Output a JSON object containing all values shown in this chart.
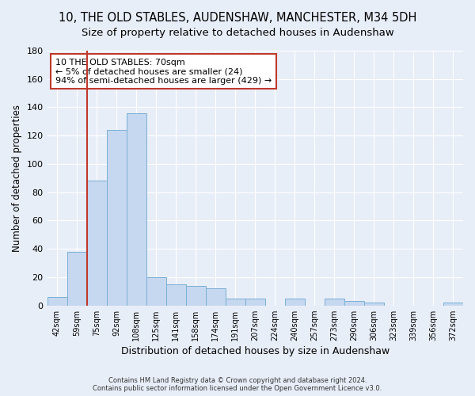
{
  "title_line1": "10, THE OLD STABLES, AUDENSHAW, MANCHESTER, M34 5DH",
  "title_line2": "Size of property relative to detached houses in Audenshaw",
  "xlabel": "Distribution of detached houses by size in Audenshaw",
  "ylabel": "Number of detached properties",
  "footer_line1": "Contains HM Land Registry data © Crown copyright and database right 2024.",
  "footer_line2": "Contains public sector information licensed under the Open Government Licence v3.0.",
  "bar_labels": [
    "42sqm",
    "59sqm",
    "75sqm",
    "92sqm",
    "108sqm",
    "125sqm",
    "141sqm",
    "158sqm",
    "174sqm",
    "191sqm",
    "207sqm",
    "224sqm",
    "240sqm",
    "257sqm",
    "273sqm",
    "290sqm",
    "306sqm",
    "323sqm",
    "339sqm",
    "356sqm",
    "372sqm"
  ],
  "bar_values": [
    6,
    38,
    88,
    124,
    136,
    20,
    15,
    14,
    12,
    5,
    5,
    0,
    5,
    0,
    5,
    3,
    2,
    0,
    0,
    0,
    2
  ],
  "bar_color": "#c5d8f0",
  "bar_edge_color": "#7aafd4",
  "highlight_bar_color": "#c0392b",
  "property_line_x": 1.5,
  "annotation_text": "10 THE OLD STABLES: 70sqm\n← 5% of detached houses are smaller (24)\n94% of semi-detached houses are larger (429) →",
  "annotation_box_color": "#ffffff",
  "annotation_box_edge_color": "#c0392b",
  "ylim": [
    0,
    180
  ],
  "yticks": [
    0,
    20,
    40,
    60,
    80,
    100,
    120,
    140,
    160,
    180
  ],
  "background_color": "#e8eef8",
  "grid_color": "#d0d8e8",
  "title_fontsize": 10.5,
  "subtitle_fontsize": 9.5,
  "ylabel_fontsize": 8.5,
  "xlabel_fontsize": 9
}
